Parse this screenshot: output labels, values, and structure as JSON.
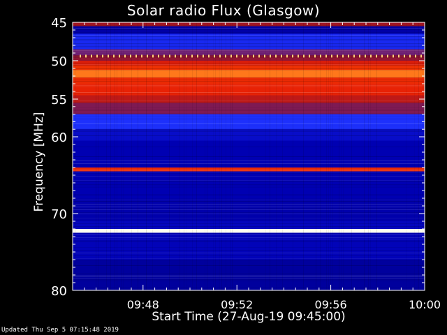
{
  "chart_data": {
    "type": "heatmap",
    "title": "Solar radio Flux (Glasgow)",
    "xlabel": "Start Time (27-Aug-19 09:45:00)",
    "ylabel": "Frequency [MHz]",
    "x_ticks": [
      "09:48",
      "09:52",
      "09:56",
      "10:00"
    ],
    "x_tick_minutes": [
      48,
      52,
      56,
      60
    ],
    "xlim_minutes": [
      45,
      60
    ],
    "y_ticks": [
      "45",
      "50",
      "55",
      "60",
      "70",
      "80"
    ],
    "y_tick_values": [
      45,
      50,
      55,
      60,
      70,
      80
    ],
    "ylim": [
      45,
      80
    ],
    "y_inverted": true,
    "colormap": [
      "#000050",
      "#0000b4",
      "#1e32ff",
      "#961428",
      "#e61e05",
      "#ff5a00",
      "#ffff96",
      "#ffffff"
    ],
    "frequency_bands": [
      {
        "from": 45.0,
        "to": 45.5,
        "level": 0.45
      },
      {
        "from": 45.5,
        "to": 46.5,
        "level": 0.12
      },
      {
        "from": 46.5,
        "to": 48.5,
        "level": 0.26
      },
      {
        "from": 48.5,
        "to": 49.3,
        "level": 0.38
      },
      {
        "from": 49.3,
        "to": 50.0,
        "level": 0.42
      },
      {
        "from": 50.0,
        "to": 50.6,
        "level": 0.55
      },
      {
        "from": 50.6,
        "to": 51.2,
        "level": 0.62
      },
      {
        "from": 51.2,
        "to": 52.2,
        "level": 0.74
      },
      {
        "from": 52.2,
        "to": 53.0,
        "level": 0.6
      },
      {
        "from": 53.0,
        "to": 54.5,
        "level": 0.58
      },
      {
        "from": 54.5,
        "to": 55.5,
        "level": 0.5
      },
      {
        "from": 55.5,
        "to": 57.0,
        "level": 0.4
      },
      {
        "from": 57.0,
        "to": 59.0,
        "level": 0.28
      },
      {
        "from": 59.0,
        "to": 60.5,
        "level": 0.18
      },
      {
        "from": 60.5,
        "to": 64.0,
        "level": 0.14
      },
      {
        "from": 64.0,
        "to": 64.5,
        "level": 0.6
      },
      {
        "from": 64.5,
        "to": 68.0,
        "level": 0.14
      },
      {
        "from": 68.0,
        "to": 71.0,
        "level": 0.13
      },
      {
        "from": 71.0,
        "to": 72.0,
        "level": 0.16
      },
      {
        "from": 72.0,
        "to": 72.5,
        "level": 0.98
      },
      {
        "from": 72.5,
        "to": 76.0,
        "level": 0.15
      },
      {
        "from": 76.0,
        "to": 80.0,
        "level": 0.11
      }
    ],
    "periodic_marker_frequency": 49.4
  },
  "footer": {
    "updated": "Updated Thu Sep  5 07:15:48 2019"
  }
}
